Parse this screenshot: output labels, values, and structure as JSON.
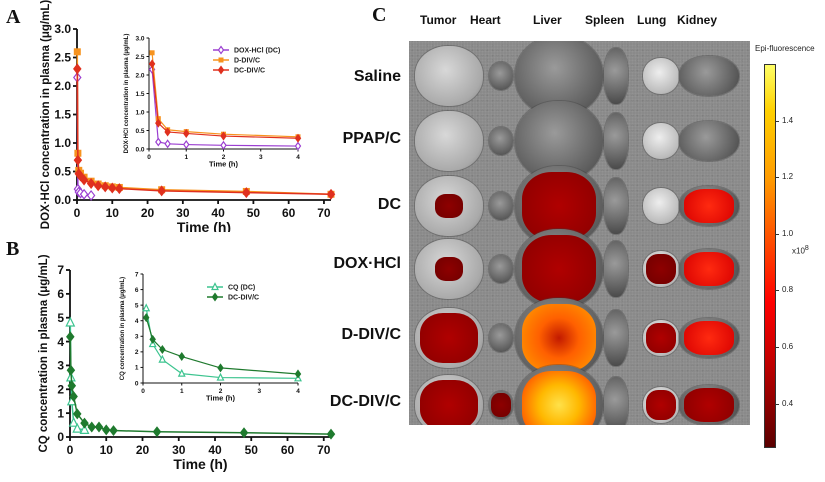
{
  "figure": {
    "panel_labels": [
      "A",
      "B",
      "C"
    ]
  },
  "chart_data": [
    {
      "id": "A-main",
      "type": "line",
      "xlabel": "Time (h)",
      "ylabel": "DOX·HCl concentration in plasma (μg/mL)",
      "xlim": [
        0,
        72
      ],
      "ylim": [
        0,
        3.0
      ],
      "xticks": [
        0,
        10,
        20,
        30,
        40,
        50,
        60,
        70
      ],
      "yticks": [
        "0.0",
        "0.5",
        "1.0",
        "1.5",
        "2.0",
        "2.5",
        "3.0"
      ],
      "series": [
        {
          "name": "DOX-HCl (DC)",
          "color": "#9b3fd1",
          "marker": "open-diamond",
          "x": [
            0.083,
            0.25,
            0.5,
            1,
            2,
            4
          ],
          "y": [
            2.15,
            0.19,
            0.14,
            0.12,
            0.1,
            0.08
          ]
        },
        {
          "name": "D-DIV/C",
          "color": "#f7931e",
          "marker": "square",
          "x": [
            0.083,
            0.25,
            0.5,
            1,
            2,
            4,
            6,
            8,
            10,
            12,
            24,
            48,
            72
          ],
          "y": [
            2.6,
            0.82,
            0.52,
            0.47,
            0.4,
            0.33,
            0.28,
            0.25,
            0.23,
            0.22,
            0.18,
            0.15,
            0.1
          ]
        },
        {
          "name": "DC-DIV/C",
          "color": "#e0301e",
          "marker": "filled-diamond",
          "x": [
            0.083,
            0.25,
            0.5,
            1,
            2,
            4,
            6,
            8,
            10,
            12,
            24,
            48,
            72
          ],
          "y": [
            2.3,
            0.7,
            0.46,
            0.42,
            0.35,
            0.29,
            0.25,
            0.23,
            0.21,
            0.2,
            0.16,
            0.13,
            0.1
          ]
        }
      ]
    },
    {
      "id": "A-inset",
      "type": "line",
      "xlabel": "Time (h)",
      "ylabel": "DOX·HCl concentration in plasma (μg/mL)",
      "xlim": [
        0,
        4
      ],
      "ylim": [
        0,
        3.0
      ],
      "xticks": [
        0,
        1,
        2,
        3,
        4
      ],
      "yticks": [
        "0.0",
        "0.5",
        "1.0",
        "1.5",
        "2.0",
        "2.5",
        "3.0"
      ],
      "legend": [
        "DOX-HCl (DC)",
        "D-DIV/C",
        "DC-DIV/C"
      ],
      "legend_position": "top-right",
      "series": [
        {
          "name": "DOX-HCl (DC)",
          "color": "#9b3fd1",
          "marker": "open-diamond",
          "x": [
            0.083,
            0.25,
            0.5,
            1,
            2,
            4
          ],
          "y": [
            2.15,
            0.19,
            0.14,
            0.12,
            0.1,
            0.08
          ]
        },
        {
          "name": "D-DIV/C",
          "color": "#f7931e",
          "marker": "square",
          "x": [
            0.083,
            0.25,
            0.5,
            1,
            2,
            4
          ],
          "y": [
            2.6,
            0.82,
            0.52,
            0.47,
            0.4,
            0.33
          ]
        },
        {
          "name": "DC-DIV/C",
          "color": "#e0301e",
          "marker": "filled-diamond",
          "x": [
            0.083,
            0.25,
            0.5,
            1,
            2,
            4
          ],
          "y": [
            2.3,
            0.7,
            0.46,
            0.42,
            0.35,
            0.29
          ]
        }
      ]
    },
    {
      "id": "B-main",
      "type": "line",
      "xlabel": "Time (h)",
      "ylabel": "CQ concentration in plasma (μg/mL)",
      "xlim": [
        0,
        72
      ],
      "ylim": [
        0,
        7
      ],
      "xticks": [
        0,
        10,
        20,
        30,
        40,
        50,
        60,
        70
      ],
      "yticks": [
        "0",
        "1",
        "2",
        "3",
        "4",
        "5",
        "6",
        "7"
      ],
      "series": [
        {
          "name": "CQ (DC)",
          "color": "#3cc48f",
          "marker": "open-triangle",
          "x": [
            0.083,
            0.25,
            0.5,
            1,
            2,
            4
          ],
          "y": [
            4.8,
            2.5,
            1.5,
            0.6,
            0.35,
            0.3
          ]
        },
        {
          "name": "DC-DIV/C",
          "color": "#1f7a2e",
          "marker": "filled-diamond",
          "x": [
            0.083,
            0.25,
            0.5,
            1,
            2,
            4,
            6,
            8,
            10,
            12,
            24,
            48,
            72
          ],
          "y": [
            4.2,
            2.8,
            2.15,
            1.7,
            0.97,
            0.58,
            0.42,
            0.42,
            0.3,
            0.27,
            0.22,
            0.18,
            0.12
          ]
        }
      ]
    },
    {
      "id": "B-inset",
      "type": "line",
      "xlabel": "Time (h)",
      "ylabel": "CQ concentration in plasma (μg/mL)",
      "xlim": [
        0,
        4
      ],
      "ylim": [
        0,
        7
      ],
      "xticks": [
        0,
        1,
        2,
        3,
        4
      ],
      "yticks": [
        "0",
        "1",
        "2",
        "3",
        "4",
        "5",
        "6",
        "7"
      ],
      "legend": [
        "CQ (DC)",
        "DC-DIV/C"
      ],
      "legend_position": "top-right",
      "series": [
        {
          "name": "CQ (DC)",
          "color": "#3cc48f",
          "marker": "open-triangle",
          "x": [
            0.083,
            0.25,
            0.5,
            1,
            2,
            4
          ],
          "y": [
            4.8,
            2.5,
            1.5,
            0.6,
            0.35,
            0.3
          ]
        },
        {
          "name": "DC-DIV/C",
          "color": "#1f7a2e",
          "marker": "filled-diamond",
          "x": [
            0.083,
            0.25,
            0.5,
            1,
            2,
            4
          ],
          "y": [
            4.2,
            2.8,
            2.15,
            1.7,
            0.97,
            0.58
          ]
        }
      ]
    },
    {
      "id": "C-imaging",
      "type": "heatmap",
      "columns": [
        "Tumor",
        "Heart",
        "Liver",
        "Spleen",
        "Lung",
        "Kidney"
      ],
      "rows": [
        "Saline",
        "PPAP/C",
        "DC",
        "DOX·HCl",
        "D-DIV/C",
        "DC-DIV/C"
      ],
      "colorbar": {
        "title": "Epi-fluorescence",
        "ticks": [
          "1.4",
          "1.2",
          "1.0",
          "0.8",
          "0.6",
          "0.4"
        ],
        "unit": "x10^8",
        "range": [
          0.25,
          1.6
        ]
      },
      "intensity": [
        [
          0,
          0,
          0,
          0,
          0,
          0
        ],
        [
          0,
          0,
          0,
          0,
          0,
          0
        ],
        [
          0.3,
          0,
          0.35,
          0,
          0,
          0.6
        ],
        [
          0.3,
          0,
          0.35,
          0,
          0.2,
          0.55
        ],
        [
          0.35,
          0,
          0.8,
          0,
          0.35,
          0.6
        ],
        [
          0.4,
          0.1,
          0.95,
          0,
          0.35,
          0.45
        ]
      ]
    }
  ],
  "labels": {
    "A_ylabel": "DOX·HCl concentration in plasma (μg/mL)",
    "A_inset_ylabel": "DOX·HCl concentration in plasma (μg/mL)",
    "B_ylabel": "CQ concentration in plasma (μg/mL)",
    "B_inset_ylabel": "CQ concentration in plasma (μg/mL)",
    "time": "Time (h)",
    "colorbar_title": "Epi-fluorescence",
    "colorbar_unit": "x10",
    "colorbar_exp": "8"
  }
}
